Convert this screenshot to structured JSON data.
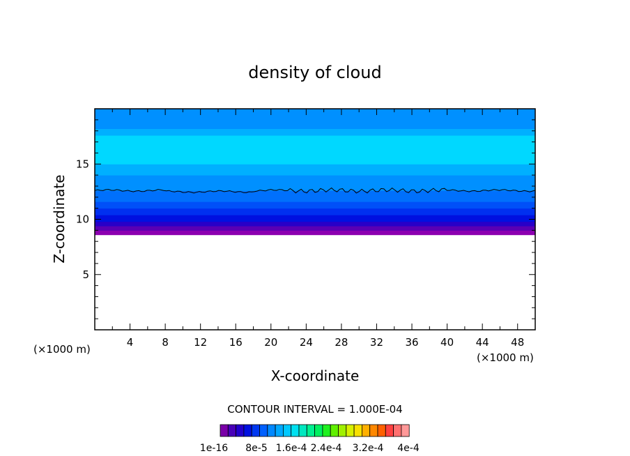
{
  "chart_data": {
    "type": "heatmap",
    "title": "density of cloud",
    "xlabel": "X-coordinate",
    "ylabel": "Z-coordinate",
    "x_unit_left": "(×1000 m)",
    "x_unit_right": "(×1000 m)",
    "xlim": [
      0,
      50
    ],
    "ylim": [
      0,
      20
    ],
    "x_ticks": [
      4,
      8,
      12,
      16,
      20,
      24,
      28,
      32,
      36,
      40,
      44,
      48
    ],
    "y_ticks": [
      5,
      10,
      15
    ],
    "cloud_base_z": 8.6,
    "cloud_top_z": 18.2,
    "contour_line_z": 12.6,
    "bands": [
      {
        "z0": 8.6,
        "z1": 9.0,
        "color": "#8c00b0"
      },
      {
        "z0": 9.0,
        "z1": 9.4,
        "color": "#5a00b4"
      },
      {
        "z0": 9.4,
        "z1": 9.8,
        "color": "#2800c8"
      },
      {
        "z0": 9.8,
        "z1": 10.4,
        "color": "#0010e0"
      },
      {
        "z0": 10.4,
        "z1": 11.0,
        "color": "#0030f0"
      },
      {
        "z0": 11.0,
        "z1": 11.6,
        "color": "#0050f8"
      },
      {
        "z0": 11.6,
        "z1": 12.6,
        "color": "#0070fc"
      },
      {
        "z0": 12.6,
        "z1": 14.0,
        "color": "#0090ff"
      },
      {
        "z0": 14.0,
        "z1": 15.0,
        "color": "#00b0ff"
      },
      {
        "z0": 15.0,
        "z1": 17.6,
        "color": "#00d8ff"
      },
      {
        "z0": 17.6,
        "z1": 18.2,
        "color": "#00b0ff"
      },
      {
        "z0": 18.2,
        "z1": 20.0,
        "color": "#0090ff"
      }
    ],
    "contour_interval_text": "CONTOUR INTERVAL = 1.000E-04",
    "colorbar": {
      "colors": [
        "#7a00a8",
        "#4800b8",
        "#2200cc",
        "#0010e0",
        "#0038f0",
        "#0060ff",
        "#0088ff",
        "#00a8ff",
        "#00c8ff",
        "#00e0f0",
        "#00e8c0",
        "#00f090",
        "#00f060",
        "#20f020",
        "#60f000",
        "#a0f000",
        "#d8f000",
        "#f8e000",
        "#ffb000",
        "#ff8800",
        "#ff6000",
        "#ff4040",
        "#ff7070",
        "#ff9898"
      ],
      "labels": [
        "1e-16",
        "8e-5",
        "1.6e-4",
        "2.4e-4",
        "3.2e-4",
        "4e-4"
      ]
    }
  }
}
